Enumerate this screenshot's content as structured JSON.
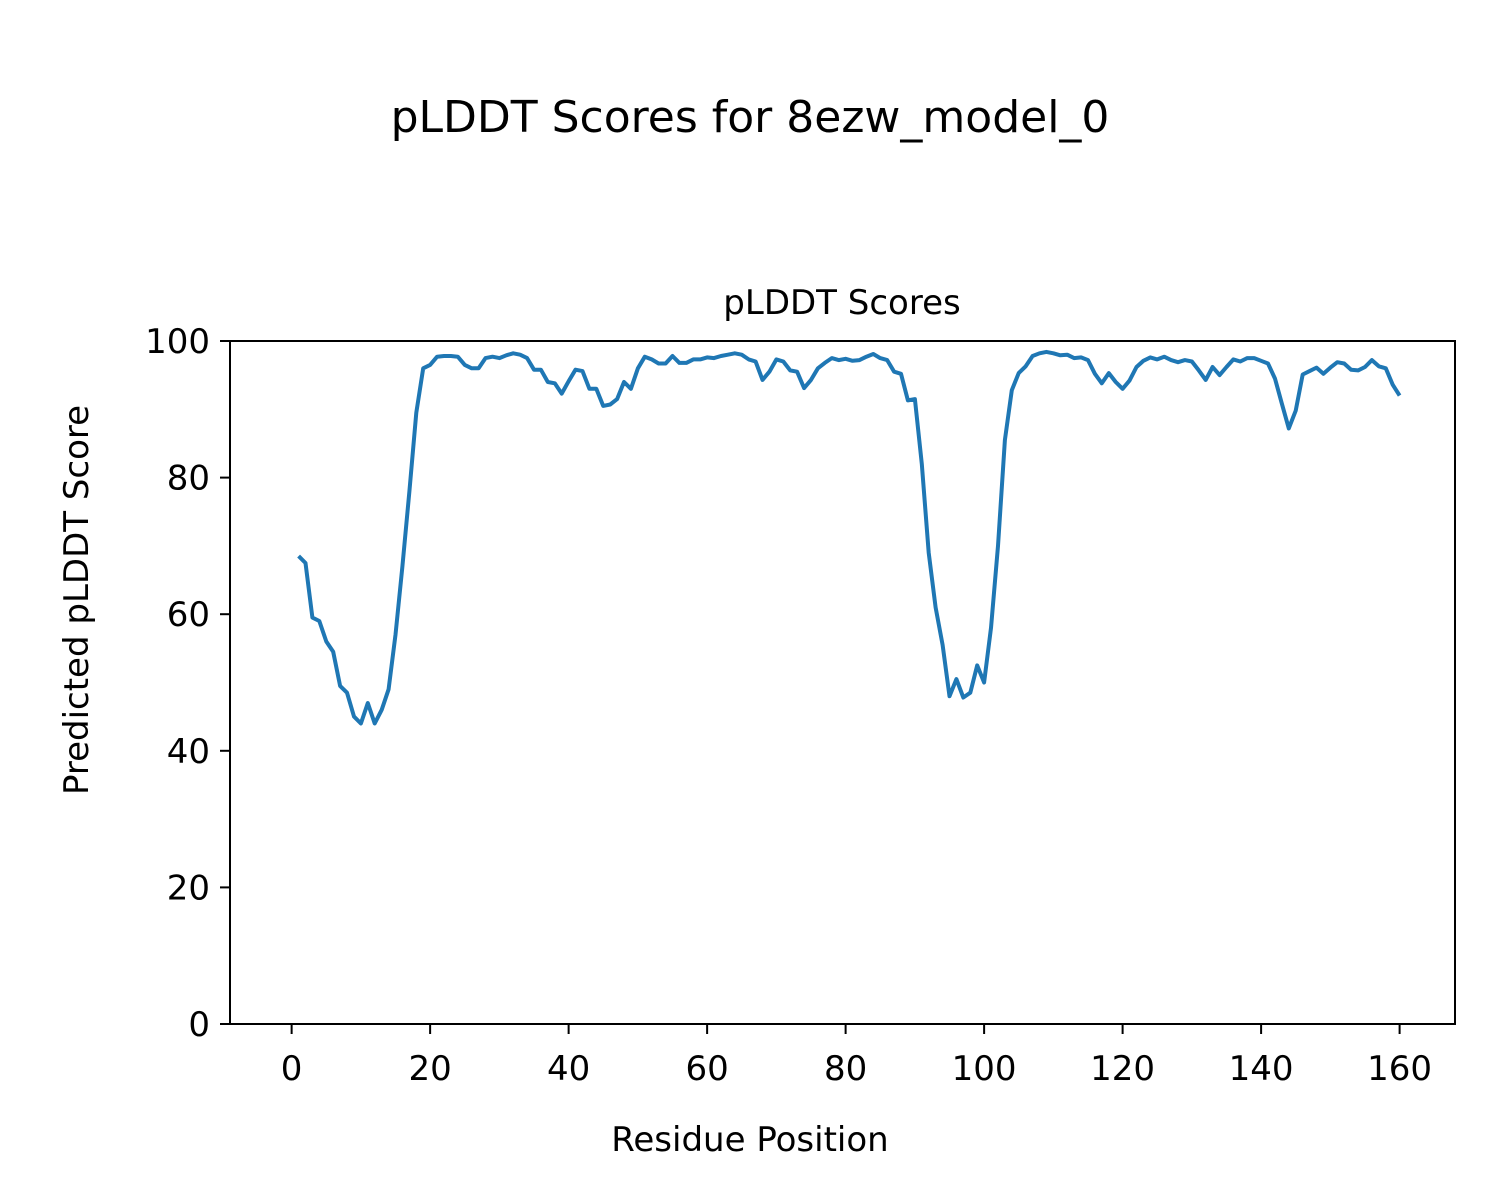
{
  "figure": {
    "suptitle": "pLDDT Scores for 8ezw_model_0"
  },
  "chart_data": {
    "type": "line",
    "title": "pLDDT Scores",
    "xlabel": "Residue Position",
    "ylabel": "Predicted pLDDT Score",
    "xlim": [
      -8.9,
      168
    ],
    "ylim": [
      0,
      100
    ],
    "xticks": [
      0,
      20,
      40,
      60,
      80,
      100,
      120,
      140,
      160
    ],
    "yticks": [
      0,
      20,
      40,
      60,
      80,
      100
    ],
    "grid": false,
    "series_color": "#1f77b4",
    "x": [
      1,
      2,
      3,
      4,
      5,
      6,
      7,
      8,
      9,
      10,
      11,
      12,
      13,
      14,
      15,
      16,
      17,
      18,
      19,
      20,
      21,
      22,
      23,
      24,
      25,
      26,
      27,
      28,
      29,
      30,
      31,
      32,
      33,
      34,
      35,
      36,
      37,
      38,
      39,
      40,
      41,
      42,
      43,
      44,
      45,
      46,
      47,
      48,
      49,
      50,
      51,
      52,
      53,
      54,
      55,
      56,
      57,
      58,
      59,
      60,
      61,
      62,
      63,
      64,
      65,
      66,
      67,
      68,
      69,
      70,
      71,
      72,
      73,
      74,
      75,
      76,
      77,
      78,
      79,
      80,
      81,
      82,
      83,
      84,
      85,
      86,
      87,
      88,
      89,
      90,
      91,
      92,
      93,
      94,
      95,
      96,
      97,
      98,
      99,
      100,
      101,
      102,
      103,
      104,
      105,
      106,
      107,
      108,
      109,
      110,
      111,
      112,
      113,
      114,
      115,
      116,
      117,
      118,
      119,
      120,
      121,
      122,
      123,
      124,
      125,
      126,
      127,
      128,
      129,
      130,
      131,
      132,
      133,
      134,
      135,
      136,
      137,
      138,
      139,
      140,
      141,
      142,
      143,
      144,
      145,
      146,
      147,
      148,
      149,
      150,
      151,
      152,
      153,
      154,
      155,
      156,
      157,
      158,
      159,
      160
    ],
    "y": [
      68.5,
      67.5,
      59.5,
      59.0,
      56.0,
      54.5,
      49.5,
      48.5,
      45.0,
      44.0,
      47.0,
      44.0,
      46.0,
      49.0,
      57.0,
      67.0,
      78.0,
      89.5,
      96.0,
      96.5,
      97.7,
      97.8,
      97.8,
      97.7,
      96.5,
      96.0,
      96.0,
      97.5,
      97.7,
      97.5,
      97.9,
      98.2,
      98.0,
      97.5,
      95.8,
      95.8,
      94.0,
      93.8,
      92.3,
      94.1,
      95.8,
      95.6,
      93.0,
      93.0,
      90.5,
      90.7,
      91.5,
      94.0,
      93.0,
      96.0,
      97.7,
      97.3,
      96.7,
      96.7,
      97.8,
      96.8,
      96.8,
      97.3,
      97.3,
      97.6,
      97.5,
      97.8,
      98.0,
      98.2,
      98.0,
      97.3,
      97.0,
      94.3,
      95.5,
      97.3,
      97.0,
      95.7,
      95.5,
      93.1,
      94.3,
      96.0,
      96.8,
      97.5,
      97.2,
      97.4,
      97.1,
      97.2,
      97.7,
      98.1,
      97.5,
      97.2,
      95.5,
      95.2,
      91.3,
      91.5,
      82.0,
      69.0,
      61.0,
      55.5,
      48.0,
      50.5,
      47.8,
      48.5,
      52.5,
      50.0,
      58.0,
      70.0,
      85.5,
      92.8,
      95.3,
      96.3,
      97.8,
      98.2,
      98.4,
      98.2,
      97.9,
      98.0,
      97.5,
      97.6,
      97.2,
      95.2,
      93.8,
      95.3,
      94.0,
      93.0,
      94.2,
      96.2,
      97.1,
      97.6,
      97.3,
      97.7,
      97.2,
      96.9,
      97.2,
      97.0,
      95.7,
      94.3,
      96.2,
      95.0,
      96.2,
      97.3,
      97.0,
      97.5,
      97.5,
      97.1,
      96.7,
      94.5,
      90.8,
      87.2,
      89.8,
      95.1,
      95.6,
      96.1,
      95.2,
      96.1,
      96.9,
      96.7,
      95.8,
      95.7,
      96.2,
      97.2,
      96.3,
      96.0,
      93.6,
      92.0
    ]
  }
}
